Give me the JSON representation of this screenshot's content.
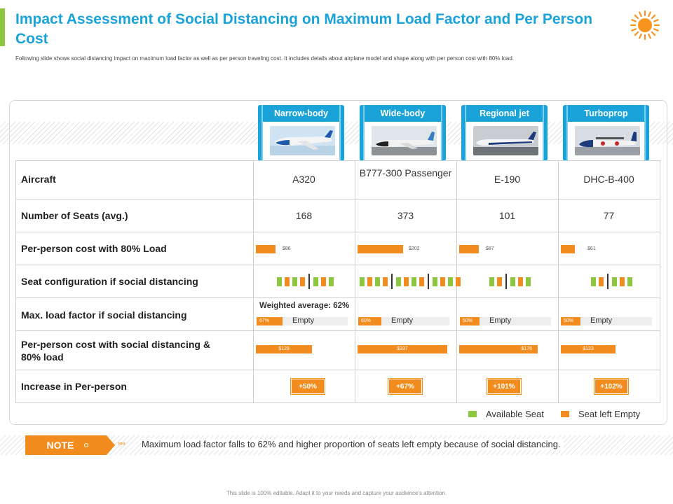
{
  "header": {
    "title": "Impact Assessment of Social Distancing on Maximum Load Factor and Per Person Cost",
    "subtitle": "Following slide shows social distancing impact on maximum load factor as well as per person traveling cost. It includes details about airplane model and shape along with per person cost with 80% load."
  },
  "aircraft_types": [
    "Narrow-body",
    "Wide-body",
    "Regional jet",
    "Turboprop"
  ],
  "rows": {
    "aircraft": "Aircraft",
    "seats": "Number of Seats (avg.)",
    "cost80": "Per-person cost with 80% Load",
    "seatcfg": "Seat configuration if social distancing",
    "maxload": "Max. load factor if social distancing",
    "costsd": "Per-person cost with social distancing & 80% load",
    "increase": "Increase in Per-person"
  },
  "columns": [
    {
      "aircraft": "A320",
      "seats": "168",
      "cost80": "$86",
      "cost80_value": 86,
      "load_label": "67%",
      "load_value": 67,
      "costsd": "$129",
      "costsd_value": 129,
      "increase": "+50%"
    },
    {
      "aircraft": "B777-300 Passenger",
      "seats": "373",
      "cost80": "$202",
      "cost80_value": 202,
      "load_label": "60%",
      "load_value": 60,
      "costsd": "$337",
      "costsd_value": 337,
      "increase": "+67%"
    },
    {
      "aircraft": "E-190",
      "seats": "101",
      "cost80": "$87",
      "cost80_value": 87,
      "load_label": "50%",
      "load_value": 50,
      "costsd": "$176",
      "costsd_value": 176,
      "increase": "+101%"
    },
    {
      "aircraft": "DHC-B-400",
      "seats": "77",
      "cost80": "$61",
      "cost80_value": 61,
      "load_label": "50%",
      "load_value": 50,
      "costsd": "$123",
      "costsd_value": 123,
      "increase": "+102%"
    }
  ],
  "seat_configs": [
    [
      "g",
      "o",
      "g",
      "o",
      "|",
      "g",
      "o",
      "g"
    ],
    [
      "g",
      "o",
      "g",
      "o",
      "|",
      "g",
      "o",
      "g",
      "o",
      "|",
      "g",
      "o",
      "g",
      "o"
    ],
    [
      "g",
      "o",
      "|",
      "g",
      "o",
      "g"
    ],
    [
      "g",
      "o",
      "|",
      "g",
      "o",
      "g"
    ]
  ],
  "weighted_average": "Weighted average: 62%",
  "empty_label": "Empty",
  "legend": {
    "available": "Available Seat",
    "empty": "Seat left Empty"
  },
  "colors": {
    "available": "#8dc63f",
    "empty": "#f28c1e",
    "title": "#1aa3d9"
  },
  "note": {
    "label": "NOTE",
    "text": "Maximum  load factor falls to 62% and higher proportion of seats left empty because of social distancing."
  },
  "footer": "This slide is 100% editable. Adapt it to your needs and capture your audience's attention."
}
